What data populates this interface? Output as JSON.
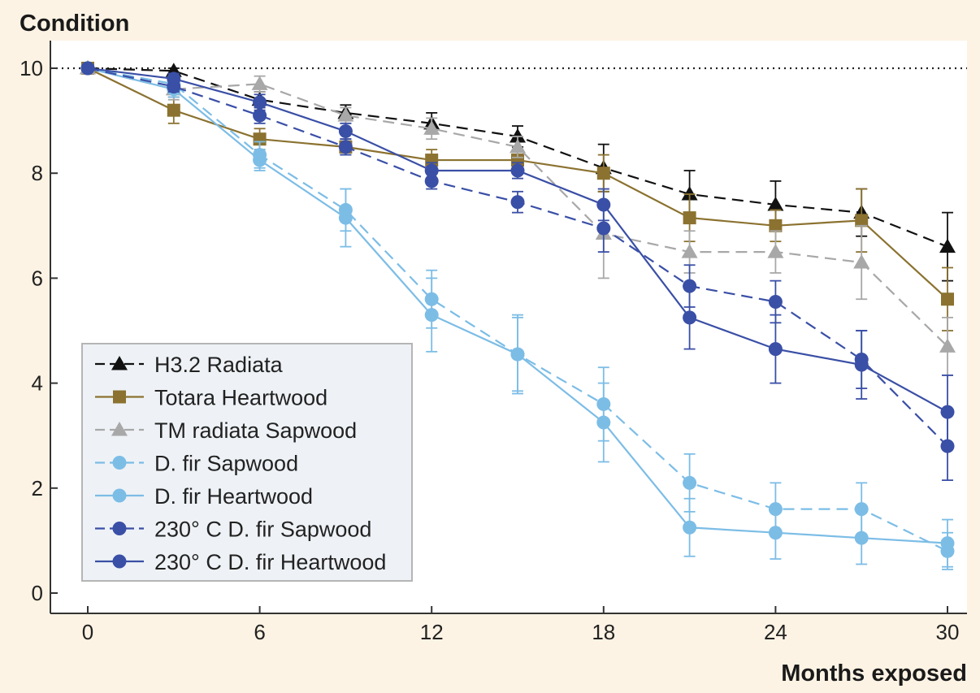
{
  "chart_data": {
    "type": "line",
    "ylabel": "Condition",
    "xlabel": "Months exposed",
    "xlim": [
      0,
      30
    ],
    "ylim": [
      0,
      10
    ],
    "xticks": [
      0,
      6,
      12,
      18,
      24,
      30
    ],
    "yticks": [
      0,
      2,
      4,
      6,
      8,
      10
    ],
    "reference_line": 10,
    "legend_position": "lower-left",
    "x": [
      0,
      3,
      6,
      9,
      12,
      15,
      18,
      21,
      24,
      27,
      30
    ],
    "series": [
      {
        "name": "H3.2 Radiata",
        "color": "#111111",
        "dash": "dashed",
        "marker": "triangle",
        "values": [
          10,
          9.95,
          9.4,
          9.15,
          8.95,
          8.7,
          8.1,
          7.6,
          7.4,
          7.25,
          6.6
        ],
        "errors": [
          0,
          0.05,
          0.15,
          0.15,
          0.2,
          0.2,
          0.45,
          0.45,
          0.45,
          0.45,
          0.65
        ]
      },
      {
        "name": "Totara Heartwood",
        "color": "#8b7230",
        "dash": "solid",
        "marker": "square",
        "values": [
          10,
          9.2,
          8.65,
          8.5,
          8.25,
          8.25,
          8.0,
          7.15,
          7.0,
          7.1,
          5.6
        ],
        "errors": [
          0,
          0.25,
          0.2,
          0.15,
          0.2,
          0.15,
          0.35,
          0.45,
          0.3,
          0.6,
          0.6
        ]
      },
      {
        "name": "TM radiata Sapwood",
        "color": "#a8a8a8",
        "dash": "dashed",
        "marker": "triangle",
        "values": [
          10,
          9.6,
          9.7,
          9.1,
          8.85,
          8.5,
          6.85,
          6.5,
          6.5,
          6.3,
          4.7
        ],
        "errors": [
          0,
          0.2,
          0.15,
          0.15,
          0.2,
          0.2,
          0.85,
          0.4,
          0.4,
          0.7,
          0.55
        ]
      },
      {
        "name": "D. fir Sapwood",
        "color": "#7cbde6",
        "dash": "dashed",
        "marker": "circle",
        "values": [
          10,
          9.7,
          8.35,
          7.3,
          5.6,
          4.55,
          3.6,
          2.1,
          1.6,
          1.6,
          0.8
        ],
        "errors": [
          0,
          0.15,
          0.25,
          0.4,
          0.55,
          0.75,
          0.7,
          0.55,
          0.5,
          0.5,
          0.35
        ]
      },
      {
        "name": "D. fir Heartwood",
        "color": "#7cbde6",
        "dash": "solid",
        "marker": "circle",
        "values": [
          10,
          9.6,
          8.25,
          7.15,
          5.3,
          4.55,
          3.25,
          1.25,
          1.15,
          1.05,
          0.95
        ],
        "errors": [
          0,
          0.15,
          0.2,
          0.55,
          0.7,
          0.7,
          0.75,
          0.55,
          0.5,
          0.5,
          0.45
        ]
      },
      {
        "name": "230° C D. fir Sapwood",
        "color": "#3a4fa6",
        "dash": "dashed",
        "marker": "circle",
        "values": [
          10,
          9.65,
          9.1,
          8.5,
          7.85,
          7.45,
          6.95,
          5.85,
          5.55,
          4.45,
          2.8
        ],
        "errors": [
          0,
          0.1,
          0.15,
          0.15,
          0.15,
          0.2,
          0.45,
          0.4,
          0.4,
          0.55,
          0.65
        ]
      },
      {
        "name": "230° C D. fir Heartwood",
        "color": "#3a4fa6",
        "dash": "solid",
        "marker": "circle",
        "values": [
          10,
          9.8,
          9.35,
          8.8,
          8.05,
          8.05,
          7.4,
          5.25,
          4.65,
          4.35,
          3.45
        ],
        "errors": [
          0,
          0.1,
          0.15,
          0.15,
          0.15,
          0.15,
          0.3,
          0.6,
          0.65,
          0.65,
          0.7
        ]
      }
    ]
  }
}
